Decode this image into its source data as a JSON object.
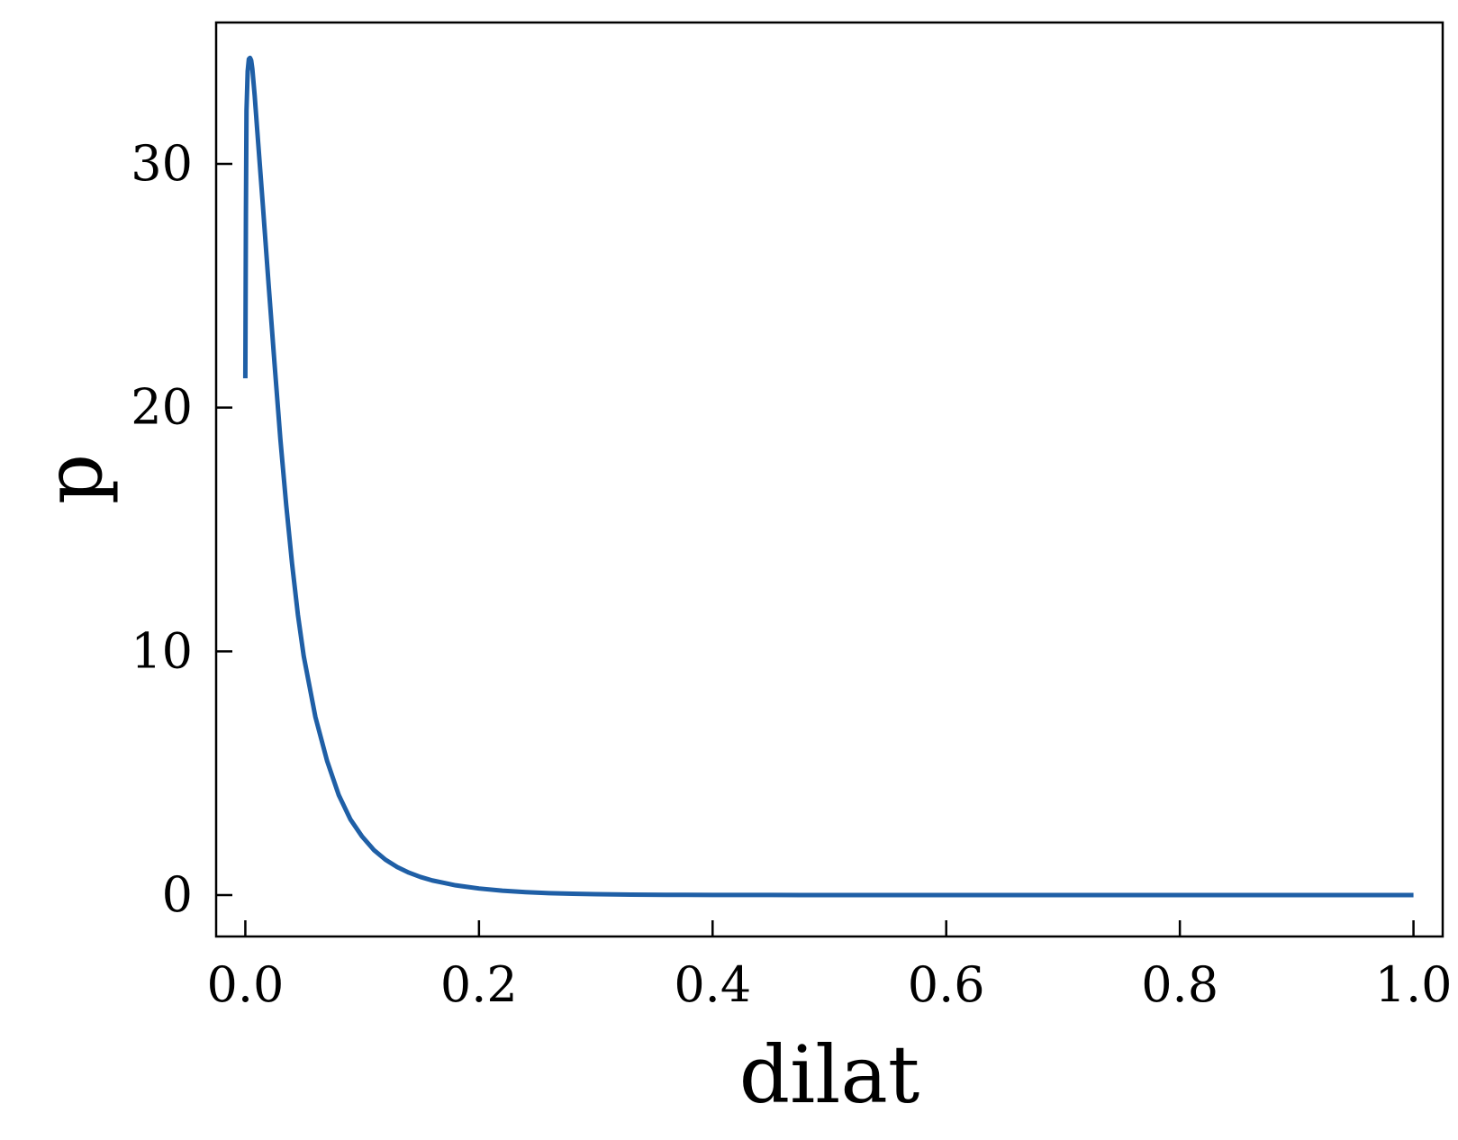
{
  "chart_data": {
    "type": "line",
    "title": "",
    "xlabel": "dilat",
    "ylabel": "p",
    "xlim": [
      -0.025,
      1.025
    ],
    "ylim": [
      -1.7,
      35.8
    ],
    "xticks": [
      {
        "value": 0.0,
        "label": "0.0"
      },
      {
        "value": 0.2,
        "label": "0.2"
      },
      {
        "value": 0.4,
        "label": "0.4"
      },
      {
        "value": 0.6,
        "label": "0.6"
      },
      {
        "value": 0.8,
        "label": "0.8"
      },
      {
        "value": 1.0,
        "label": "1.0"
      }
    ],
    "yticks": [
      {
        "value": 0,
        "label": "0"
      },
      {
        "value": 10,
        "label": "10"
      },
      {
        "value": 20,
        "label": "20"
      },
      {
        "value": 30,
        "label": "30"
      }
    ],
    "grid": false,
    "series": [
      {
        "color": "#1f5fa6",
        "x": [
          0.0,
          0.0005,
          0.001,
          0.002,
          0.003,
          0.004,
          0.005,
          0.006,
          0.008,
          0.01,
          0.015,
          0.02,
          0.025,
          0.03,
          0.035,
          0.04,
          0.045,
          0.05,
          0.06,
          0.07,
          0.08,
          0.09,
          0.1,
          0.11,
          0.12,
          0.13,
          0.14,
          0.15,
          0.16,
          0.17,
          0.18,
          0.2,
          0.22,
          0.24,
          0.26,
          0.28,
          0.3,
          0.33,
          0.36,
          0.4,
          0.45,
          0.5,
          0.6,
          0.7,
          0.8,
          0.9,
          1.0
        ],
        "y": [
          21.2,
          28.0,
          32.2,
          33.8,
          34.3,
          34.35,
          34.25,
          33.9,
          32.8,
          31.5,
          28.3,
          25.0,
          21.8,
          18.7,
          16.0,
          13.6,
          11.5,
          9.8,
          7.3,
          5.5,
          4.1,
          3.1,
          2.4,
          1.85,
          1.45,
          1.15,
          0.92,
          0.74,
          0.6,
          0.5,
          0.4,
          0.27,
          0.18,
          0.12,
          0.08,
          0.055,
          0.037,
          0.02,
          0.011,
          0.005,
          0.002,
          0.001,
          0.0,
          0.0,
          0.0,
          0.0,
          0.0
        ]
      }
    ]
  }
}
